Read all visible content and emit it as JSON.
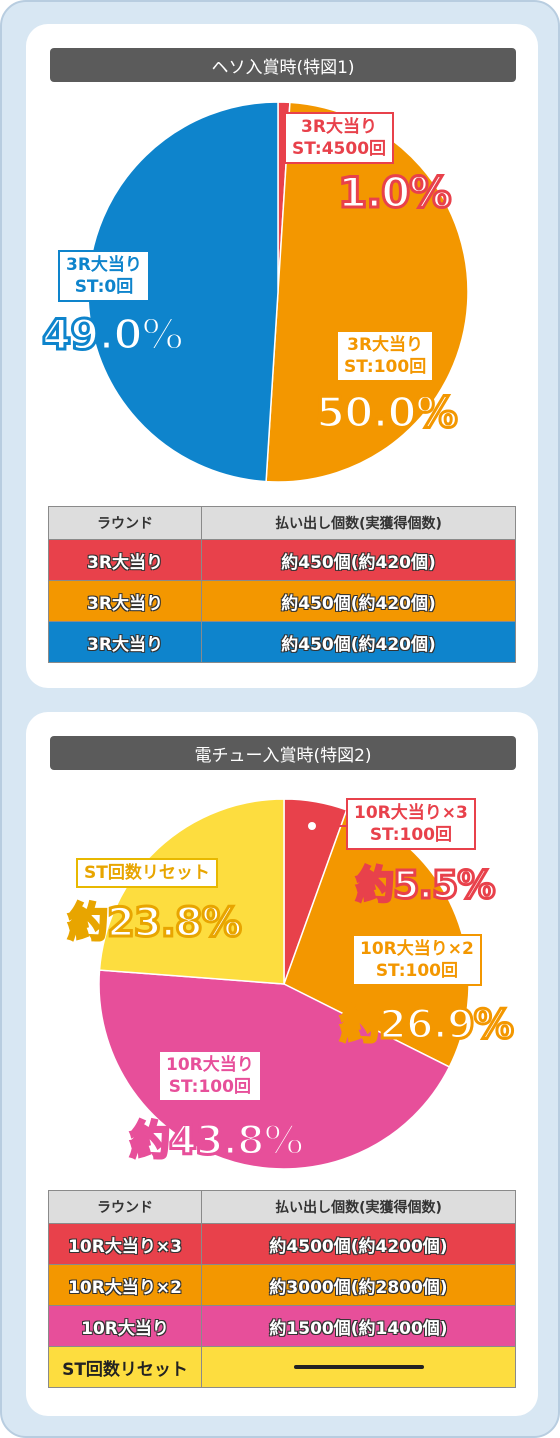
{
  "colors": {
    "red": "#e8414b",
    "orange": "#f39700",
    "blue": "#0e84cc",
    "pink": "#e74f9a",
    "yellow": "#fddd3f"
  },
  "section1": {
    "title": "ヘソ入賞時(特図1)",
    "chart_data": {
      "type": "pie",
      "slices": [
        {
          "label_line1": "3R大当り",
          "label_line2": "ST:4500回",
          "percent_text": "1.0%",
          "value": 1.0,
          "color": "#e8414b"
        },
        {
          "label_line1": "3R大当り",
          "label_line2": "ST:100回",
          "percent_text": "50.0%",
          "value": 50.0,
          "color": "#f39700"
        },
        {
          "label_line1": "3R大当り",
          "label_line2": "ST:0回",
          "percent_text": "49.0%",
          "value": 49.0,
          "color": "#0e84cc"
        }
      ]
    },
    "table": {
      "headers": [
        "ラウンド",
        "払い出し個数(実獲得個数)"
      ],
      "rows": [
        {
          "round": "3R大当り",
          "payout": "約450個(約420個)",
          "color": "#e8414b"
        },
        {
          "round": "3R大当り",
          "payout": "約450個(約420個)",
          "color": "#f39700"
        },
        {
          "round": "3R大当り",
          "payout": "約450個(約420個)",
          "color": "#0e84cc"
        }
      ]
    }
  },
  "section2": {
    "title": "電チュー入賞時(特図2)",
    "chart_data": {
      "type": "pie",
      "slices": [
        {
          "label_line1": "10R大当り×3",
          "label_line2": "ST:100回",
          "percent_text": "約5.5%",
          "value": 5.5,
          "color": "#e8414b"
        },
        {
          "label_line1": "10R大当り×2",
          "label_line2": "ST:100回",
          "percent_text": "約26.9%",
          "value": 26.9,
          "color": "#f39700"
        },
        {
          "label_line1": "10R大当り",
          "label_line2": "ST:100回",
          "percent_text": "約43.8%",
          "value": 43.8,
          "color": "#e74f9a"
        },
        {
          "label_line1": "ST回数リセット",
          "label_line2": "",
          "percent_text": "約23.8%",
          "value": 23.8,
          "color": "#fddd3f"
        }
      ]
    },
    "table": {
      "headers": [
        "ラウンド",
        "払い出し個数(実獲得個数)"
      ],
      "rows": [
        {
          "round": "10R大当り×3",
          "payout": "約4500個(約4200個)",
          "color": "#e8414b"
        },
        {
          "round": "10R大当り×2",
          "payout": "約3000個(約2800個)",
          "color": "#f39700"
        },
        {
          "round": "10R大当り",
          "payout": "約1500個(約1400個)",
          "color": "#e74f9a"
        },
        {
          "round": "ST回数リセット",
          "payout": "",
          "color": "#fddd3f"
        }
      ]
    }
  }
}
